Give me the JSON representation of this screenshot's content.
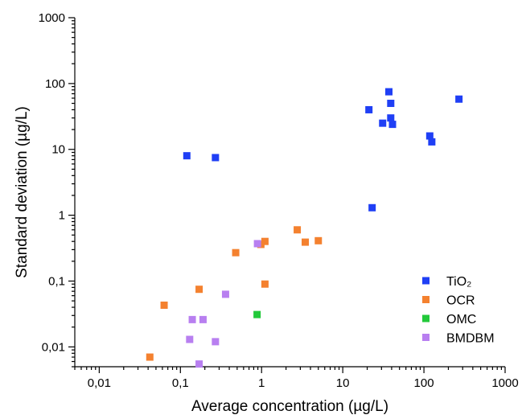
{
  "chart_data": {
    "type": "scatter",
    "xlabel": "Average concentration (µg/L)",
    "ylabel": "Standard deviation (µg/L)",
    "xscale": "log",
    "yscale": "log",
    "xlim": [
      0.005,
      1000
    ],
    "ylim": [
      0.005,
      1000
    ],
    "x_ticks": [
      {
        "value": 0.01,
        "label": "0,01"
      },
      {
        "value": 0.1,
        "label": "0,1"
      },
      {
        "value": 1,
        "label": "1"
      },
      {
        "value": 10,
        "label": "10"
      },
      {
        "value": 100,
        "label": "100"
      },
      {
        "value": 1000,
        "label": "1000"
      }
    ],
    "y_ticks": [
      {
        "value": 0.01,
        "label": "0,01"
      },
      {
        "value": 0.1,
        "label": "0,1"
      },
      {
        "value": 1,
        "label": "1"
      },
      {
        "value": 10,
        "label": "10"
      },
      {
        "value": 100,
        "label": "100"
      },
      {
        "value": 1000,
        "label": "1000"
      }
    ],
    "legend_position": "bottom-right",
    "grid": false,
    "series": [
      {
        "name": "TiO₂",
        "color": "#1f3ff5",
        "points": [
          [
            0.12,
            8.0
          ],
          [
            0.27,
            7.5
          ],
          [
            21,
            40
          ],
          [
            31,
            25
          ],
          [
            37,
            75
          ],
          [
            39,
            50
          ],
          [
            39,
            30
          ],
          [
            41,
            24
          ],
          [
            23,
            1.3
          ],
          [
            118,
            16
          ],
          [
            125,
            13
          ],
          [
            270,
            58
          ]
        ]
      },
      {
        "name": "OCR",
        "color": "#f4812f",
        "points": [
          [
            0.042,
            0.007
          ],
          [
            0.063,
            0.043
          ],
          [
            0.17,
            0.075
          ],
          [
            0.48,
            0.27
          ],
          [
            1.1,
            0.4
          ],
          [
            1.1,
            0.09
          ],
          [
            0.98,
            0.36
          ],
          [
            2.75,
            0.6
          ],
          [
            3.45,
            0.39
          ],
          [
            5.0,
            0.41
          ]
        ]
      },
      {
        "name": "OMC",
        "color": "#22c93a",
        "points": [
          [
            0.88,
            0.031
          ]
        ]
      },
      {
        "name": "BMDBM",
        "color": "#b87ff0",
        "points": [
          [
            0.14,
            0.026
          ],
          [
            0.19,
            0.026
          ],
          [
            0.36,
            0.063
          ],
          [
            0.89,
            0.37
          ],
          [
            0.13,
            0.013
          ],
          [
            0.27,
            0.012
          ],
          [
            0.17,
            0.0055
          ]
        ]
      }
    ]
  }
}
